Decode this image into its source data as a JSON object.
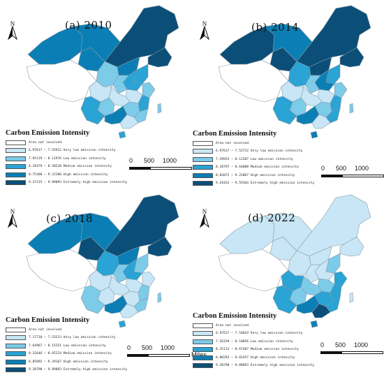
{
  "legend_title": "Carbon Emission Intensity",
  "scale": {
    "zero": "0",
    "mid": "500",
    "max": "1000",
    "unit": "Miles"
  },
  "north_icon": "north-arrow-icon",
  "colors": {
    "not_involved": "#ffffff",
    "border": "#8a9aa6",
    "c1": "#c8e6f5",
    "c2": "#7ccbe9",
    "c3": "#2aa3d5",
    "c4": "#0b7fb5",
    "c5": "#0b4f78"
  },
  "panels": [
    {
      "title": "(a) 2010",
      "legend": [
        "Area not involved",
        "6.97617 — 7.55912 Very low emission intensity",
        "7.95119 — 8.11976  Low emission intensity",
        "8.18379 — 8.50220 Medium emission intensity",
        "8.75368 — 9.22106 High emission intensity",
        "9.37215 — 9.89093 Extremely high emission intensity"
      ]
    },
    {
      "title": "(b) 2014",
      "legend": [
        "Area not involved",
        "6.97617 — 7.52722 Very low emission intensity",
        "7.59924 — 8.12387 Low emission intensity",
        "8.18797 — 8.64080 Medium emission intensity",
        "8.83072 — 9.22067 High emission intensity",
        "9.41812 — 9.59164 Extremely high emission intensity"
      ]
    },
    {
      "title": "(c) 2018",
      "legend": [
        "Area not involved",
        "7.17710 — 7.53213 Very low emission intensity",
        "7.64967 — 8.15251 Low emission intensity",
        "8.31646 — 8.65224 Medium emission intensity",
        "8.85892 — 9.29167 High emission intensity",
        "9.20798 — 9.89093 Extremely high emission intensity"
      ]
    },
    {
      "title": "(d) 2022",
      "legend": [
        "Area not involved",
        "6.97617 — 7.54843 Very low emission intensity",
        "7.56339 — 8.10056 Low emission intensity",
        "8.25113 — 8.67487 Medium emission intensity",
        "8.80293 — 9.01457 High emission intensity",
        "9.20798 — 9.89093 Extremely high emission intensity"
      ]
    }
  ],
  "panel_classes": [
    [
      "c5",
      "c4",
      "c4",
      "c4",
      "c5",
      "c4",
      "c2",
      "c3",
      "c3",
      "c2",
      "c2",
      "c1",
      "c3",
      "c1",
      "c2",
      "c2",
      "c1",
      "c2",
      "c3",
      "c4",
      "c1",
      "c3"
    ],
    [
      "c5",
      "c5",
      "c5",
      "c4",
      "c5",
      "c5",
      "c3",
      "c3",
      "c4",
      "c2",
      "c2",
      "c1",
      "c3",
      "c1",
      "c2",
      "c3",
      "c1",
      "c2",
      "c3",
      "c4",
      "c1",
      "c4"
    ],
    [
      "c5",
      "c4",
      "c5",
      "c4",
      "c5",
      "c4",
      "c3",
      "c2",
      "c3",
      "c1",
      "c2",
      "c1",
      "c2",
      "c1",
      "c1",
      "c2",
      "c1",
      "c1",
      "c2",
      "c4",
      "c1",
      "c3"
    ],
    [
      "c1",
      "c1",
      "c1",
      "c1",
      "c1",
      "c1",
      "c1",
      "c2",
      "c1",
      "c3",
      "c1",
      "c2",
      "c3",
      "c2",
      "c3",
      "c3",
      "c3",
      "c2",
      "c3",
      "c4",
      "c5",
      "c4"
    ]
  ]
}
